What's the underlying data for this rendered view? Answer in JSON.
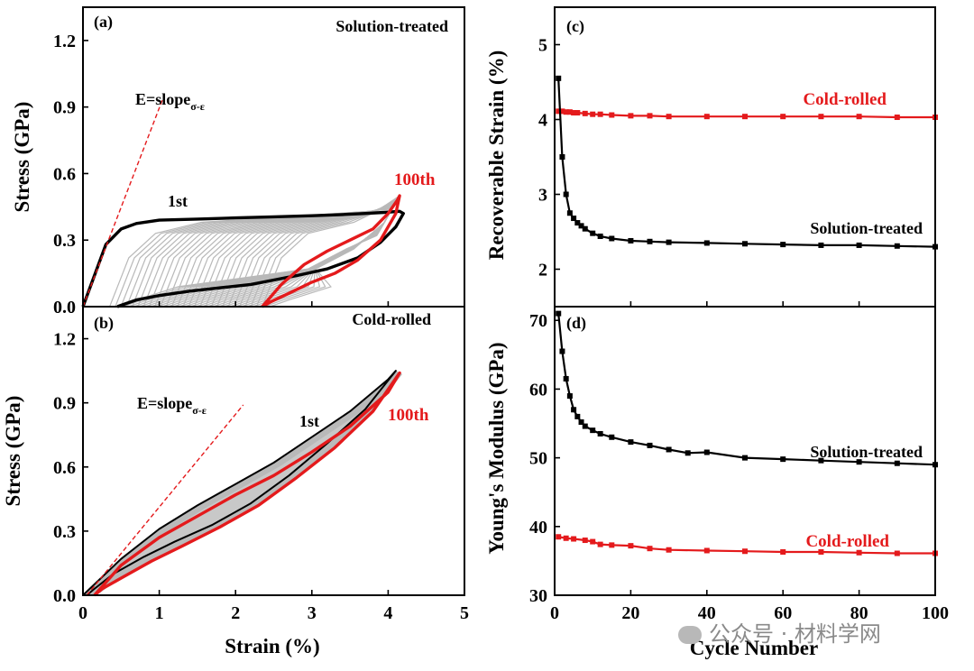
{
  "watermark": "公众号 · 材料学网",
  "colors": {
    "black": "#000000",
    "red": "#e41a1c",
    "gray": "#b9b9b9",
    "fill": "#c8c8c8"
  },
  "chart_data": [
    {
      "panel": "(a)",
      "type": "line",
      "annotation": "Solution-treated",
      "equation": {
        "main": "E=slope",
        "sub": "σ-ε"
      },
      "xlim": [
        0,
        5
      ],
      "ylim": [
        0,
        1.35
      ],
      "xticks": [],
      "yticks": [
        "0.0",
        "0.3",
        "0.6",
        "0.9",
        "1.2"
      ],
      "ylabel": "Stress (GPa)",
      "labels": {
        "first": "1st",
        "last": "100th"
      },
      "series": [
        {
          "name": "1st",
          "color": "#000000",
          "x": [
            0,
            0.3,
            0.5,
            0.7,
            1.0,
            1.5,
            2.0,
            2.5,
            3.0,
            3.4,
            3.7,
            3.95,
            4.15,
            4.2,
            4.1,
            3.9,
            3.6,
            3.2,
            2.8,
            2.5,
            2.2,
            1.8,
            1.4,
            1.0,
            0.7,
            0.55,
            0.45
          ],
          "y": [
            0,
            0.28,
            0.35,
            0.375,
            0.39,
            0.395,
            0.4,
            0.405,
            0.41,
            0.415,
            0.42,
            0.425,
            0.43,
            0.42,
            0.36,
            0.29,
            0.22,
            0.17,
            0.14,
            0.12,
            0.1,
            0.085,
            0.07,
            0.05,
            0.03,
            0.012,
            0
          ]
        },
        {
          "name": "100th",
          "color": "#e41a1c",
          "x": [
            2.35,
            2.6,
            2.9,
            3.2,
            3.5,
            3.8,
            4.0,
            4.12,
            4.15,
            4.1,
            3.9,
            3.6,
            3.3,
            3.0,
            2.7,
            2.45,
            2.35
          ],
          "y": [
            0,
            0.1,
            0.19,
            0.25,
            0.3,
            0.35,
            0.42,
            0.48,
            0.5,
            0.42,
            0.3,
            0.21,
            0.15,
            0.11,
            0.06,
            0.02,
            0
          ]
        },
        {
          "name": "modulus-line",
          "color": "#e41a1c",
          "dashed": true,
          "x": [
            0,
            1.05
          ],
          "y": [
            0,
            0.94
          ]
        }
      ]
    },
    {
      "panel": "(b)",
      "type": "line",
      "annotation": "Cold-rolled",
      "equation": {
        "main": "E=slope",
        "sub": "σ-ε"
      },
      "xlim": [
        0,
        5
      ],
      "ylim": [
        0,
        1.35
      ],
      "xticks": [
        "0",
        "1",
        "2",
        "3",
        "4",
        "5"
      ],
      "yticks": [
        "0.0",
        "0.3",
        "0.6",
        "0.9",
        "1.2"
      ],
      "xlabel": "Strain (%)",
      "ylabel": "Stress (GPa)",
      "labels": {
        "first": "1st",
        "last": "100th"
      },
      "series": [
        {
          "name": "1st",
          "color": "#000000",
          "x": [
            0,
            0.5,
            1.0,
            1.5,
            2.0,
            2.5,
            3.0,
            3.5,
            4.0,
            4.1,
            3.7,
            3.2,
            2.7,
            2.2,
            1.7,
            1.2,
            0.8,
            0.4,
            0.15,
            0.05
          ],
          "y": [
            0,
            0.17,
            0.31,
            0.42,
            0.52,
            0.62,
            0.74,
            0.86,
            1.01,
            1.05,
            0.87,
            0.71,
            0.56,
            0.43,
            0.33,
            0.25,
            0.18,
            0.1,
            0.03,
            0
          ]
        },
        {
          "name": "100th",
          "color": "#e41a1c",
          "x": [
            0.15,
            0.5,
            1.0,
            1.5,
            2.0,
            2.5,
            3.0,
            3.5,
            4.0,
            4.15,
            3.8,
            3.3,
            2.8,
            2.3,
            1.8,
            1.3,
            0.9,
            0.5,
            0.25,
            0.15
          ],
          "y": [
            0,
            0.14,
            0.27,
            0.37,
            0.47,
            0.56,
            0.67,
            0.79,
            0.95,
            1.04,
            0.86,
            0.69,
            0.55,
            0.42,
            0.32,
            0.23,
            0.16,
            0.08,
            0.03,
            0
          ]
        },
        {
          "name": "modulus-line",
          "color": "#e41a1c",
          "dashed": true,
          "x": [
            0.05,
            2.1
          ],
          "y": [
            0,
            0.89
          ]
        }
      ]
    },
    {
      "panel": "(c)",
      "type": "line",
      "xlim": [
        0,
        100
      ],
      "ylim": [
        1.5,
        5.5
      ],
      "xticks": [],
      "yticks": [
        "2",
        "3",
        "4",
        "5"
      ],
      "ylabel": "Recoverable Strain (%)",
      "series": [
        {
          "name": "Cold-rolled",
          "color": "#e41a1c",
          "x": [
            1,
            2,
            3,
            4,
            5,
            6,
            8,
            10,
            12,
            15,
            20,
            25,
            30,
            40,
            50,
            60,
            70,
            80,
            90,
            100
          ],
          "y": [
            4.11,
            4.11,
            4.1,
            4.1,
            4.09,
            4.09,
            4.08,
            4.07,
            4.07,
            4.06,
            4.05,
            4.05,
            4.04,
            4.04,
            4.04,
            4.04,
            4.04,
            4.04,
            4.03,
            4.03
          ]
        },
        {
          "name": "Solution-treated",
          "color": "#000000",
          "x": [
            1,
            2,
            3,
            4,
            5,
            6,
            7,
            8,
            10,
            12,
            15,
            20,
            25,
            30,
            40,
            50,
            60,
            70,
            80,
            90,
            100
          ],
          "y": [
            4.55,
            3.5,
            3.0,
            2.75,
            2.68,
            2.62,
            2.58,
            2.54,
            2.48,
            2.44,
            2.41,
            2.38,
            2.37,
            2.36,
            2.35,
            2.34,
            2.33,
            2.32,
            2.32,
            2.31,
            2.3
          ]
        }
      ]
    },
    {
      "panel": "(d)",
      "type": "line",
      "xlim": [
        0,
        100
      ],
      "ylim": [
        30,
        72
      ],
      "xticks": [
        "0",
        "20",
        "40",
        "60",
        "80",
        "100"
      ],
      "yticks": [
        "30",
        "40",
        "50",
        "60",
        "70"
      ],
      "xlabel": "Cycle Number",
      "ylabel": "Young's Modulus (GPa)",
      "series": [
        {
          "name": "Solution-treated",
          "color": "#000000",
          "x": [
            1,
            2,
            3,
            4,
            5,
            6,
            7,
            8,
            10,
            12,
            15,
            20,
            25,
            30,
            35,
            40,
            50,
            60,
            70,
            80,
            90,
            100
          ],
          "y": [
            71.0,
            65.5,
            61.5,
            59.0,
            57.0,
            56.0,
            55.2,
            54.6,
            54.0,
            53.5,
            53.0,
            52.3,
            51.8,
            51.2,
            50.7,
            50.8,
            50.0,
            49.8,
            49.6,
            49.4,
            49.2,
            49.0
          ]
        },
        {
          "name": "Cold-rolled",
          "color": "#e41a1c",
          "x": [
            1,
            3,
            5,
            8,
            10,
            12,
            15,
            20,
            25,
            30,
            40,
            50,
            60,
            70,
            80,
            90,
            100
          ],
          "y": [
            38.5,
            38.3,
            38.2,
            38.0,
            37.8,
            37.4,
            37.3,
            37.2,
            36.8,
            36.6,
            36.5,
            36.4,
            36.3,
            36.3,
            36.2,
            36.1,
            36.1
          ]
        }
      ]
    }
  ]
}
